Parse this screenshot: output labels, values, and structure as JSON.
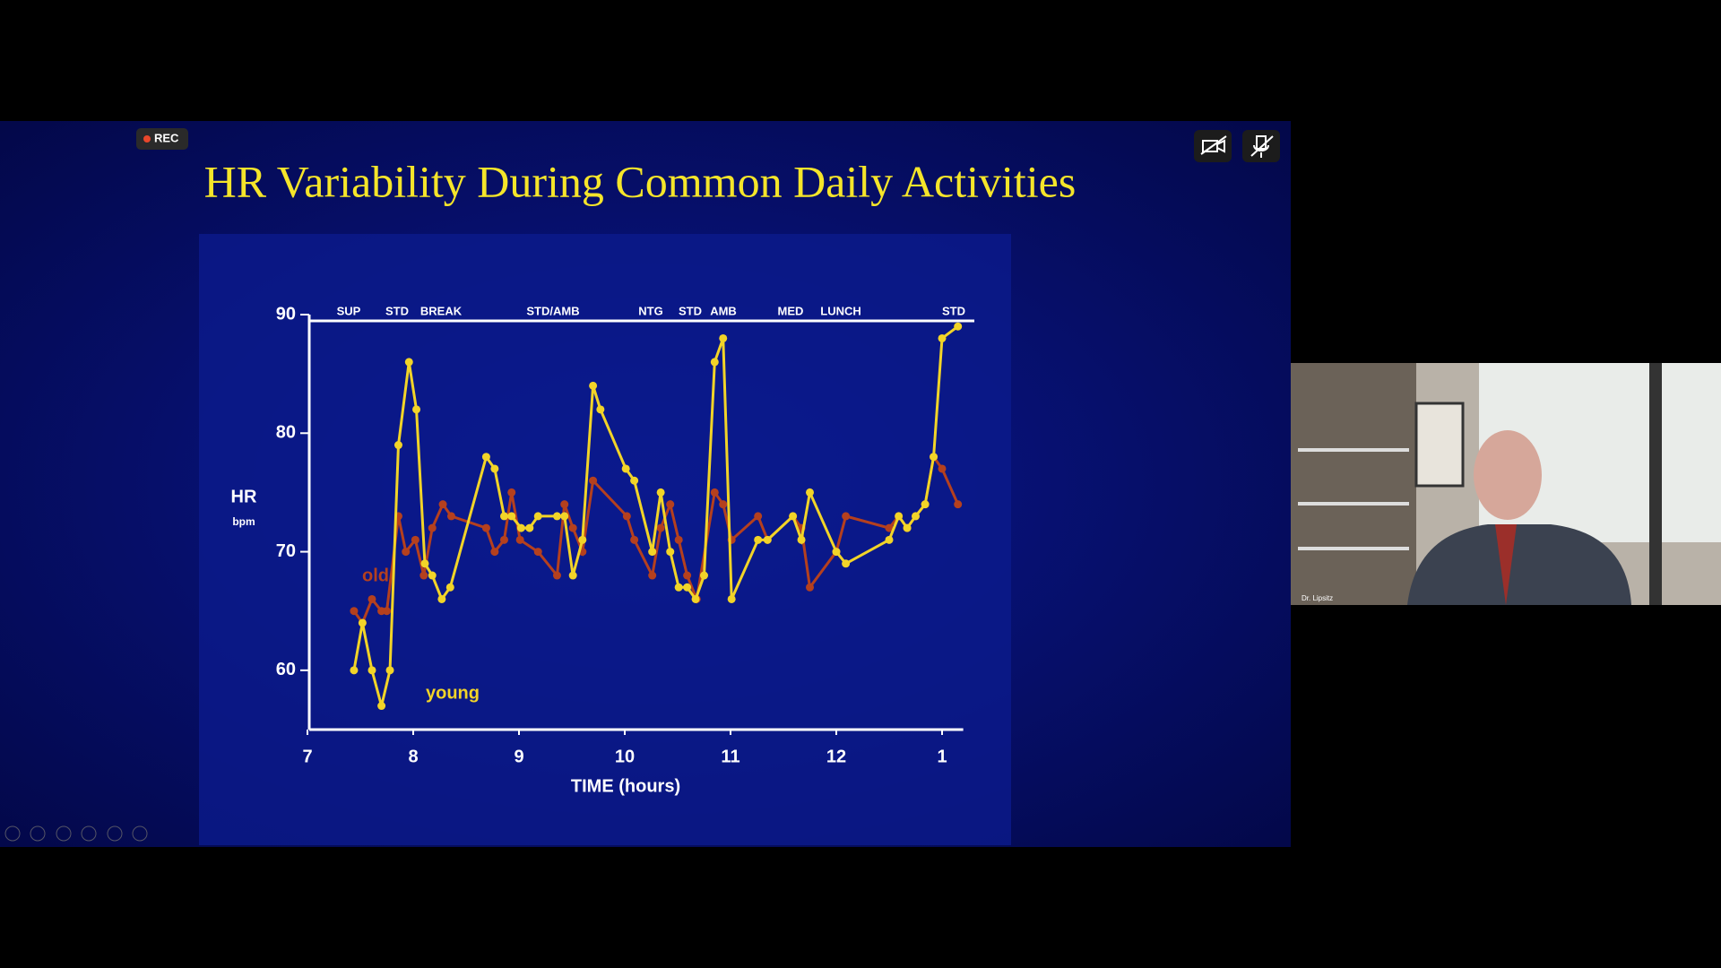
{
  "ui": {
    "rec": "REC",
    "participant": "Dr. Lipsitz"
  },
  "chart_data": {
    "type": "line",
    "title": "HR Variability During Common Daily Activities",
    "x_label": "TIME (hours)",
    "y_label": "HR",
    "y_unit": "bpm",
    "activities": [
      "SUP",
      "STD",
      "BREAK",
      "STD/AMB",
      "NTG",
      "STD",
      "AMB",
      "MED",
      "LUNCH",
      "STD"
    ],
    "xlim": [
      7,
      13.2
    ],
    "ylim": [
      55,
      90
    ],
    "xticks": [
      7,
      8,
      9,
      10,
      11,
      12,
      {
        "value": 13,
        "label": "1"
      }
    ],
    "yticks": [
      60,
      70,
      80,
      90
    ],
    "series": [
      {
        "name": "old",
        "color": "#b5401e",
        "x": [
          7.44,
          7.52,
          7.61,
          7.7,
          7.75,
          7.86,
          7.93,
          8.02,
          8.1,
          8.18,
          8.28,
          8.36,
          8.69,
          8.77,
          8.86,
          8.93,
          9.01,
          9.18,
          9.36,
          9.43,
          9.51,
          9.6,
          9.7,
          10.02,
          10.09,
          10.26,
          10.34,
          10.43,
          10.51,
          10.59,
          10.68,
          10.85,
          10.93,
          11.01,
          11.26,
          11.35,
          11.59,
          11.67,
          11.75,
          12.0,
          12.09,
          12.5,
          12.59,
          12.67,
          12.75,
          12.84,
          12.92,
          13.0,
          13.15
        ],
        "values": [
          65,
          64,
          66,
          65,
          65,
          73,
          70,
          71,
          68,
          72,
          74,
          73,
          72,
          70,
          71,
          75,
          71,
          70,
          68,
          74,
          72,
          70,
          76,
          73,
          71,
          68,
          72,
          74,
          71,
          68,
          66,
          75,
          74,
          71,
          73,
          71,
          73,
          72,
          67,
          70,
          73,
          72,
          73,
          72,
          73,
          74,
          78,
          77,
          74
        ]
      },
      {
        "name": "young",
        "color": "#f2d428",
        "x": [
          7.44,
          7.52,
          7.61,
          7.7,
          7.78,
          7.86,
          7.96,
          8.03,
          8.11,
          8.18,
          8.27,
          8.35,
          8.69,
          8.77,
          8.86,
          8.93,
          9.02,
          9.1,
          9.18,
          9.36,
          9.43,
          9.51,
          9.6,
          9.7,
          9.77,
          10.01,
          10.09,
          10.26,
          10.34,
          10.43,
          10.51,
          10.59,
          10.67,
          10.75,
          10.85,
          10.93,
          11.01,
          11.26,
          11.35,
          11.59,
          11.67,
          11.75,
          12.0,
          12.09,
          12.5,
          12.59,
          12.67,
          12.75,
          12.84,
          12.92,
          13.0,
          13.15
        ],
        "values": [
          60,
          64,
          60,
          57,
          60,
          79,
          86,
          82,
          69,
          68,
          66,
          67,
          78,
          77,
          73,
          73,
          72,
          72,
          73,
          73,
          73,
          68,
          71,
          84,
          82,
          77,
          76,
          70,
          75,
          70,
          67,
          67,
          66,
          68,
          86,
          88,
          66,
          71,
          71,
          73,
          71,
          75,
          70,
          69,
          71,
          73,
          72,
          73,
          74,
          78,
          88,
          89
        ]
      }
    ]
  }
}
